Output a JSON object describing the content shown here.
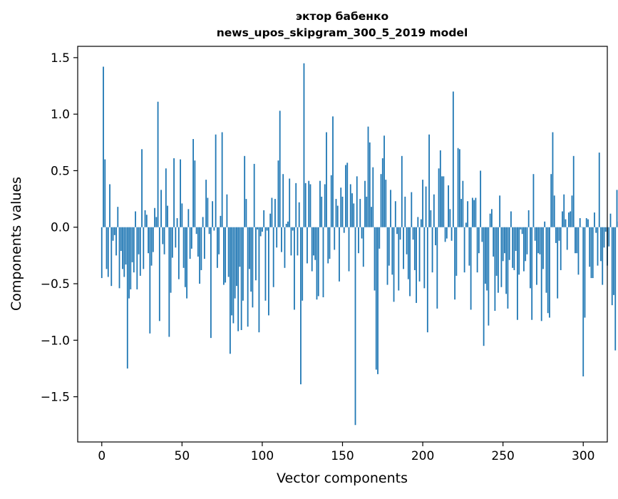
{
  "chart_data": {
    "type": "bar",
    "title_line1": "эктор бабенко",
    "title_line2": "news_upos_skipgram_300_5_2019 model",
    "xlabel": "Vector components",
    "ylabel": "Components values",
    "xlim": [
      -15,
      315
    ],
    "ylim": [
      -1.9,
      1.6
    ],
    "xticks": [
      {
        "value": 0,
        "label": "0"
      },
      {
        "value": 50,
        "label": "50"
      },
      {
        "value": 100,
        "label": "100"
      },
      {
        "value": 150,
        "label": "150"
      },
      {
        "value": 200,
        "label": "200"
      },
      {
        "value": 250,
        "label": "250"
      },
      {
        "value": 300,
        "label": "300"
      }
    ],
    "yticks": [
      {
        "value": 1.5,
        "label": "1.5"
      },
      {
        "value": 1.0,
        "label": "1.0"
      },
      {
        "value": 0.5,
        "label": "0.5"
      },
      {
        "value": 0.0,
        "label": "0.0"
      },
      {
        "value": -0.5,
        "label": "−0.5"
      },
      {
        "value": -1.0,
        "label": "−1.0"
      },
      {
        "value": -1.5,
        "label": "−1.5"
      }
    ],
    "bar_color": "#1f77b4",
    "grid": false,
    "values": [
      -0.45,
      1.42,
      0.6,
      -0.37,
      -0.44,
      0.38,
      -0.52,
      -0.12,
      -0.07,
      -0.25,
      0.18,
      -0.54,
      -0.21,
      -0.37,
      -0.44,
      -0.33,
      -1.25,
      -0.63,
      -0.55,
      -0.31,
      -0.4,
      0.14,
      -0.55,
      -0.24,
      -0.43,
      0.69,
      -0.37,
      0.15,
      0.11,
      -0.23,
      -0.94,
      -0.34,
      -0.22,
      0.17,
      0.09,
      1.11,
      -0.83,
      0.33,
      -0.15,
      -0.24,
      0.52,
      0.19,
      -0.97,
      -0.58,
      -0.27,
      0.61,
      -0.18,
      0.08,
      -0.46,
      0.6,
      0.21,
      -0.36,
      -0.53,
      -0.63,
      0.16,
      -0.28,
      -0.19,
      0.78,
      0.59,
      -0.06,
      -0.26,
      -0.5,
      -0.38,
      0.09,
      -0.28,
      0.42,
      0.26,
      -0.06,
      -0.98,
      0.23,
      -0.03,
      0.82,
      -0.36,
      -0.24,
      0.1,
      0.84,
      -0.51,
      -0.49,
      0.29,
      -0.44,
      -1.12,
      -0.78,
      -0.85,
      -0.63,
      -0.52,
      -0.92,
      -0.35,
      -0.91,
      -0.65,
      0.63,
      0.25,
      -0.88,
      -0.37,
      -0.57,
      -0.71,
      0.56,
      -0.47,
      -0.02,
      -0.93,
      -0.08,
      -0.04,
      0.15,
      -0.65,
      -0.03,
      -0.78,
      0.12,
      0.26,
      -0.53,
      0.25,
      -0.18,
      0.59,
      1.03,
      -0.22,
      0.47,
      -0.36,
      0.03,
      0.05,
      0.43,
      -0.25,
      -0.03,
      -0.73,
      0.39,
      -0.25,
      0.22,
      -1.39,
      -0.65,
      1.45,
      0.39,
      -0.32,
      0.41,
      0.38,
      -0.39,
      -0.25,
      -0.29,
      -0.64,
      -0.61,
      0.41,
      0.27,
      -0.62,
      0.38,
      0.84,
      -0.32,
      -0.28,
      0.46,
      0.98,
      -0.2,
      0.25,
      0.19,
      -0.48,
      0.35,
      0.27,
      -0.05,
      0.55,
      0.57,
      -0.39,
      0.38,
      0.3,
      0.21,
      -1.75,
      0.45,
      -0.23,
      0.25,
      -0.1,
      -0.35,
      0.41,
      0.27,
      0.89,
      0.75,
      0.18,
      0.53,
      -0.56,
      -1.26,
      -1.3,
      -0.19,
      0.47,
      0.61,
      0.81,
      0.42,
      -0.51,
      -0.34,
      0.33,
      -0.42,
      -0.66,
      0.23,
      -0.06,
      -0.56,
      -0.11,
      0.63,
      -0.37,
      0.27,
      -0.24,
      -0.46,
      -0.61,
      0.31,
      -0.11,
      -0.38,
      -0.67,
      0.09,
      -0.48,
      0.07,
      0.42,
      -0.54,
      0.36,
      -0.93,
      0.82,
      0.15,
      -0.4,
      0.29,
      -0.16,
      -0.72,
      0.52,
      0.68,
      0.45,
      0.45,
      -0.13,
      -0.1,
      0.37,
      0.16,
      -0.12,
      1.2,
      -0.64,
      -0.43,
      0.7,
      0.69,
      0.25,
      0.41,
      -0.4,
      0.04,
      0.23,
      -0.34,
      -0.73,
      0.26,
      0.24,
      0.26,
      -0.4,
      -0.23,
      0.5,
      -0.13,
      -1.05,
      -0.5,
      -0.56,
      -0.87,
      0.12,
      0.16,
      -0.26,
      -0.74,
      -0.43,
      -0.58,
      0.28,
      -0.53,
      -0.3,
      -0.23,
      -0.59,
      -0.72,
      -0.29,
      0.14,
      -0.36,
      -0.38,
      -0.21,
      -0.82,
      -0.42,
      -0.02,
      -0.06,
      -0.39,
      -0.3,
      -0.24,
      0.15,
      -0.54,
      -0.82,
      0.47,
      -0.12,
      -0.51,
      -0.23,
      -0.24,
      -0.83,
      -0.37,
      0.05,
      -0.58,
      -0.76,
      -0.8,
      0.47,
      0.84,
      0.28,
      -0.14,
      -0.63,
      -0.12,
      -0.38,
      0.14,
      0.29,
      0.07,
      -0.2,
      0.13,
      0.14,
      0.28,
      0.63,
      -0.23,
      -0.23,
      -0.42,
      0.08,
      0.0,
      -1.32,
      -0.8,
      0.08,
      0.07,
      -0.35,
      -0.45,
      -0.45,
      0.13,
      -0.05,
      -0.34,
      0.66,
      -0.3,
      -0.51,
      -0.18,
      -0.04,
      -0.34,
      -0.17,
      0.12,
      -0.69,
      -0.6,
      -1.09,
      0.33,
      0.05,
      0.48
    ]
  }
}
